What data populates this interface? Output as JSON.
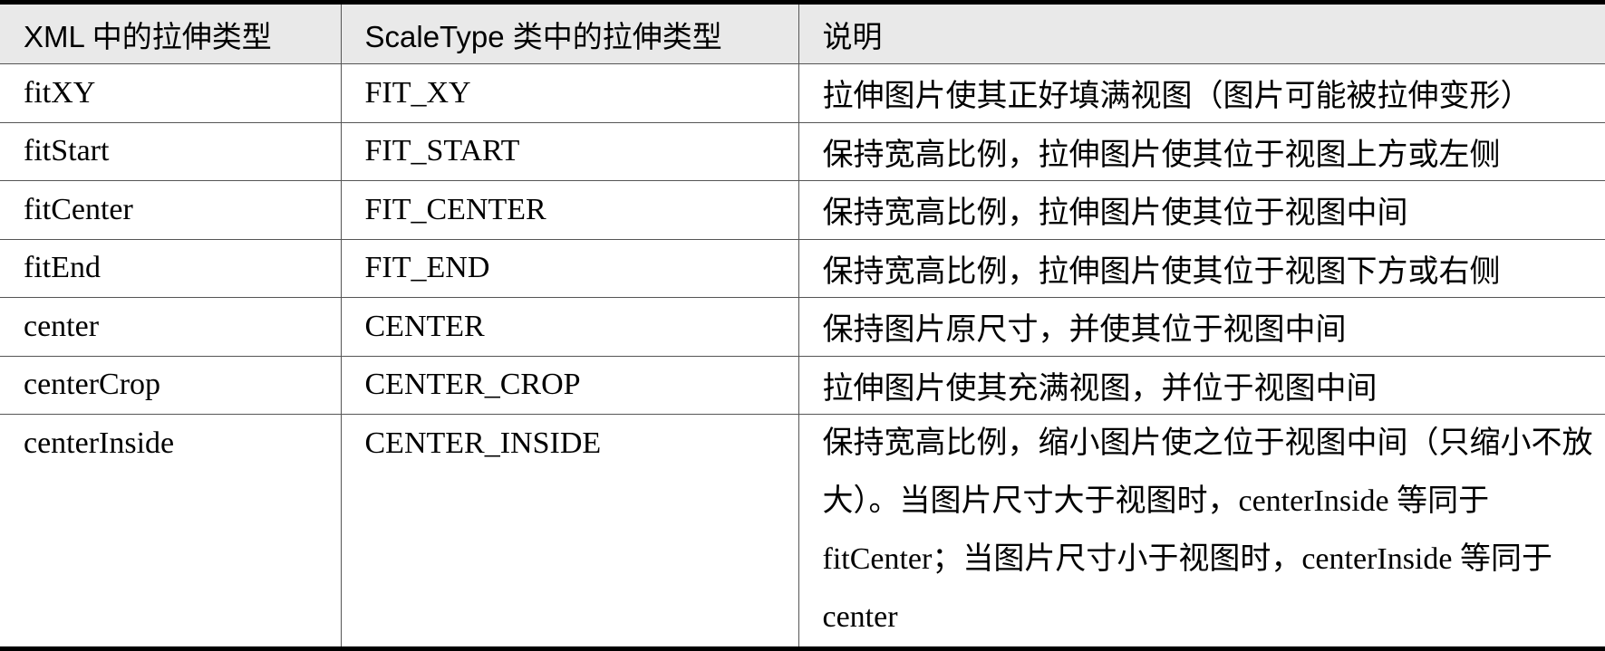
{
  "headers": [
    "XML 中的拉伸类型",
    "ScaleType 类中的拉伸类型",
    "说明"
  ],
  "rows": [
    {
      "xml": "fitXY",
      "scaletype": "FIT_XY",
      "desc": "拉伸图片使其正好填满视图（图片可能被拉伸变形）"
    },
    {
      "xml": "fitStart",
      "scaletype": "FIT_START",
      "desc": "保持宽高比例，拉伸图片使其位于视图上方或左侧"
    },
    {
      "xml": "fitCenter",
      "scaletype": "FIT_CENTER",
      "desc": "保持宽高比例，拉伸图片使其位于视图中间"
    },
    {
      "xml": "fitEnd",
      "scaletype": "FIT_END",
      "desc": "保持宽高比例，拉伸图片使其位于视图下方或右侧"
    },
    {
      "xml": "center",
      "scaletype": "CENTER",
      "desc": "保持图片原尺寸，并使其位于视图中间"
    },
    {
      "xml": "centerCrop",
      "scaletype": "CENTER_CROP",
      "desc": "拉伸图片使其充满视图，并位于视图中间"
    },
    {
      "xml": "centerInside",
      "scaletype": "CENTER_INSIDE",
      "desc": "保持宽高比例，缩小图片使之位于视图中间（只缩小不放大）。当图片尺寸大于视图时，centerInside 等同于 fitCenter；当图片尺寸小于视图时，centerInside 等同于 center"
    }
  ]
}
